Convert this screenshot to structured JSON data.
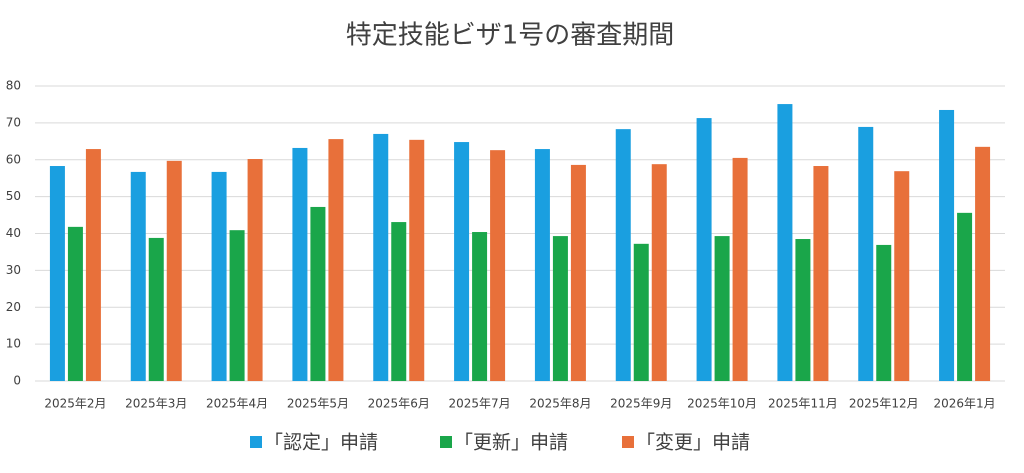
{
  "chart_data": {
    "type": "bar",
    "title": "特定技能ビザ1号の審査期間",
    "categories": [
      "2025年2月",
      "2025年3月",
      "2025年4月",
      "2025年5月",
      "2025年6月",
      "2025年7月",
      "2025年8月",
      "2025年9月",
      "2025年10月",
      "2025年11月",
      "2025年12月",
      "2026年1月"
    ],
    "series": [
      {
        "name": "「認定」申請",
        "color": "#1a9fe0",
        "values": [
          58.3,
          56.7,
          56.7,
          63.2,
          67.0,
          64.8,
          62.9,
          68.3,
          71.3,
          75.1,
          68.9,
          73.5
        ]
      },
      {
        "name": "「更新」申請",
        "color": "#1aa64a",
        "values": [
          41.8,
          38.8,
          40.9,
          47.2,
          43.1,
          40.4,
          39.3,
          37.2,
          39.3,
          38.5,
          36.9,
          45.6
        ]
      },
      {
        "name": "「変更」申請",
        "color": "#e8703a",
        "values": [
          62.9,
          59.7,
          60.2,
          65.6,
          65.4,
          62.6,
          58.6,
          58.8,
          60.5,
          58.3,
          56.9,
          63.5
        ]
      }
    ],
    "ylim": [
      0,
      80
    ],
    "yticks": [
      0,
      10,
      20,
      30,
      40,
      50,
      60,
      70,
      80
    ],
    "grid": true,
    "legend": "bottom"
  }
}
